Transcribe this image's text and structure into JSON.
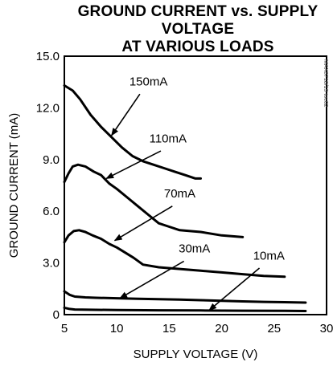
{
  "chart_data": {
    "type": "line",
    "title": [
      "GROUND CURRENT vs. SUPPLY VOLTAGE",
      "AT VARIOUS LOADS"
    ],
    "xlabel": "SUPPLY VOLTAGE (V)",
    "ylabel": "GROUND CURRENT (mA)",
    "xlim": [
      5,
      30
    ],
    "ylim": [
      0,
      15
    ],
    "xticks": [
      5,
      10,
      15,
      20,
      25,
      30
    ],
    "yticks": [
      0,
      3.0,
      6.0,
      9.0,
      12.0,
      15.0
    ],
    "ytick_labels": [
      "0",
      "3.0",
      "6.0",
      "9.0",
      "12.0",
      "15.0"
    ],
    "grid": false,
    "side_text": "MAX8718/19 toc02",
    "series": [
      {
        "name": "150mA",
        "x": [
          5.0,
          5.8,
          6.5,
          7.5,
          8.5,
          9.5,
          10.5,
          11.5,
          12.5,
          13.5,
          14.5,
          15.5,
          16.5,
          17.5,
          18.0
        ],
        "y": [
          13.3,
          13.0,
          12.5,
          11.6,
          10.9,
          10.3,
          9.7,
          9.2,
          8.9,
          8.7,
          8.5,
          8.3,
          8.1,
          7.9,
          7.9
        ]
      },
      {
        "name": "110mA",
        "x": [
          5.0,
          5.4,
          5.8,
          6.3,
          7.0,
          7.8,
          8.5,
          9.3,
          10.0,
          11.0,
          12.0,
          13.0,
          14.0,
          15.0,
          16.0,
          18.0,
          20.0,
          22.0
        ],
        "y": [
          7.7,
          8.2,
          8.6,
          8.7,
          8.6,
          8.3,
          8.1,
          7.6,
          7.3,
          6.8,
          6.3,
          5.8,
          5.3,
          5.1,
          4.9,
          4.8,
          4.6,
          4.5
        ]
      },
      {
        "name": "70mA",
        "x": [
          5.0,
          5.4,
          5.9,
          6.4,
          7.0,
          7.7,
          8.5,
          9.3,
          10.0,
          10.8,
          11.6,
          12.5,
          14.0,
          16.0,
          18.0,
          20.0,
          22.0,
          24.0,
          26.0
        ],
        "y": [
          4.2,
          4.6,
          4.85,
          4.9,
          4.8,
          4.6,
          4.4,
          4.1,
          3.9,
          3.6,
          3.3,
          2.9,
          2.75,
          2.65,
          2.55,
          2.45,
          2.35,
          2.25,
          2.2
        ]
      },
      {
        "name": "30mA",
        "x": [
          5.0,
          5.5,
          6.0,
          7.0,
          8.0,
          10.0,
          12.0,
          14.0,
          16.0,
          18.0,
          20.0,
          22.0,
          24.0,
          26.0,
          28.0
        ],
        "y": [
          1.35,
          1.15,
          1.05,
          1.0,
          0.98,
          0.95,
          0.92,
          0.9,
          0.87,
          0.84,
          0.8,
          0.77,
          0.74,
          0.72,
          0.7
        ]
      },
      {
        "name": "10mA",
        "x": [
          5.0,
          5.5,
          6.0,
          8.0,
          10.0,
          14.0,
          18.0,
          22.0,
          26.0,
          28.0
        ],
        "y": [
          0.4,
          0.33,
          0.3,
          0.28,
          0.27,
          0.25,
          0.24,
          0.23,
          0.22,
          0.21
        ]
      }
    ],
    "annotations": [
      {
        "text": "150mA",
        "label_at": [
          11.2,
          13.3
        ],
        "arrow_from": [
          12.2,
          12.8
        ],
        "arrow_to": [
          9.5,
          10.4
        ]
      },
      {
        "text": "110mA",
        "label_at": [
          13.1,
          10.0
        ],
        "arrow_from": [
          14.2,
          9.5
        ],
        "arrow_to": [
          9.0,
          7.9
        ]
      },
      {
        "text": "70mA",
        "label_at": [
          14.5,
          6.8
        ],
        "arrow_from": [
          15.3,
          6.3
        ],
        "arrow_to": [
          9.8,
          4.3
        ]
      },
      {
        "text": "30mA",
        "label_at": [
          15.9,
          3.6
        ],
        "arrow_from": [
          16.4,
          3.1
        ],
        "arrow_to": [
          10.3,
          0.95
        ]
      },
      {
        "text": "10mA",
        "label_at": [
          23.0,
          3.2
        ],
        "arrow_from": [
          23.6,
          2.7
        ],
        "arrow_to": [
          18.8,
          0.25
        ]
      }
    ]
  }
}
